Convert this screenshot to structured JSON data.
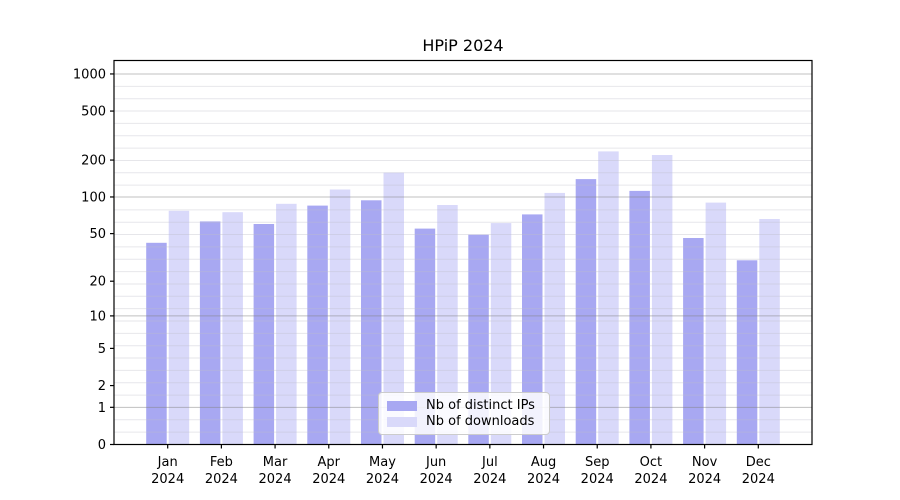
{
  "chart_data": {
    "type": "bar",
    "title": "HPiP 2024",
    "categories": [
      "Jan 2024",
      "Feb 2024",
      "Mar 2024",
      "Apr 2024",
      "May 2024",
      "Jun 2024",
      "Jul 2024",
      "Aug 2024",
      "Sep 2024",
      "Oct 2024",
      "Nov 2024",
      "Dec 2024"
    ],
    "series": [
      {
        "name": "Nb of distinct IPs",
        "color": "#a8a8f2",
        "values": [
          42,
          63,
          60,
          85,
          94,
          55,
          49,
          72,
          140,
          112,
          46,
          30
        ]
      },
      {
        "name": "Nb of downloads",
        "color": "#d9d9fa",
        "values": [
          77,
          75,
          88,
          115,
          158,
          86,
          61,
          108,
          235,
          220,
          90,
          66
        ]
      }
    ],
    "y_axis": {
      "scale": "log1p",
      "ticks": [
        0,
        1,
        2,
        5,
        10,
        20,
        50,
        100,
        200,
        500,
        1000
      ],
      "major_gridlines": [
        1,
        10,
        100,
        1000
      ],
      "range_top": 1300
    },
    "x_axis": {
      "tick_label_line2": "2024"
    },
    "legend": {
      "position": "lower-center"
    },
    "grid": true,
    "colors": {
      "axis": "#000000",
      "major_grid": "rgba(130,130,130,0.5)",
      "minor_grid": "rgba(190,190,200,0.38)"
    }
  }
}
